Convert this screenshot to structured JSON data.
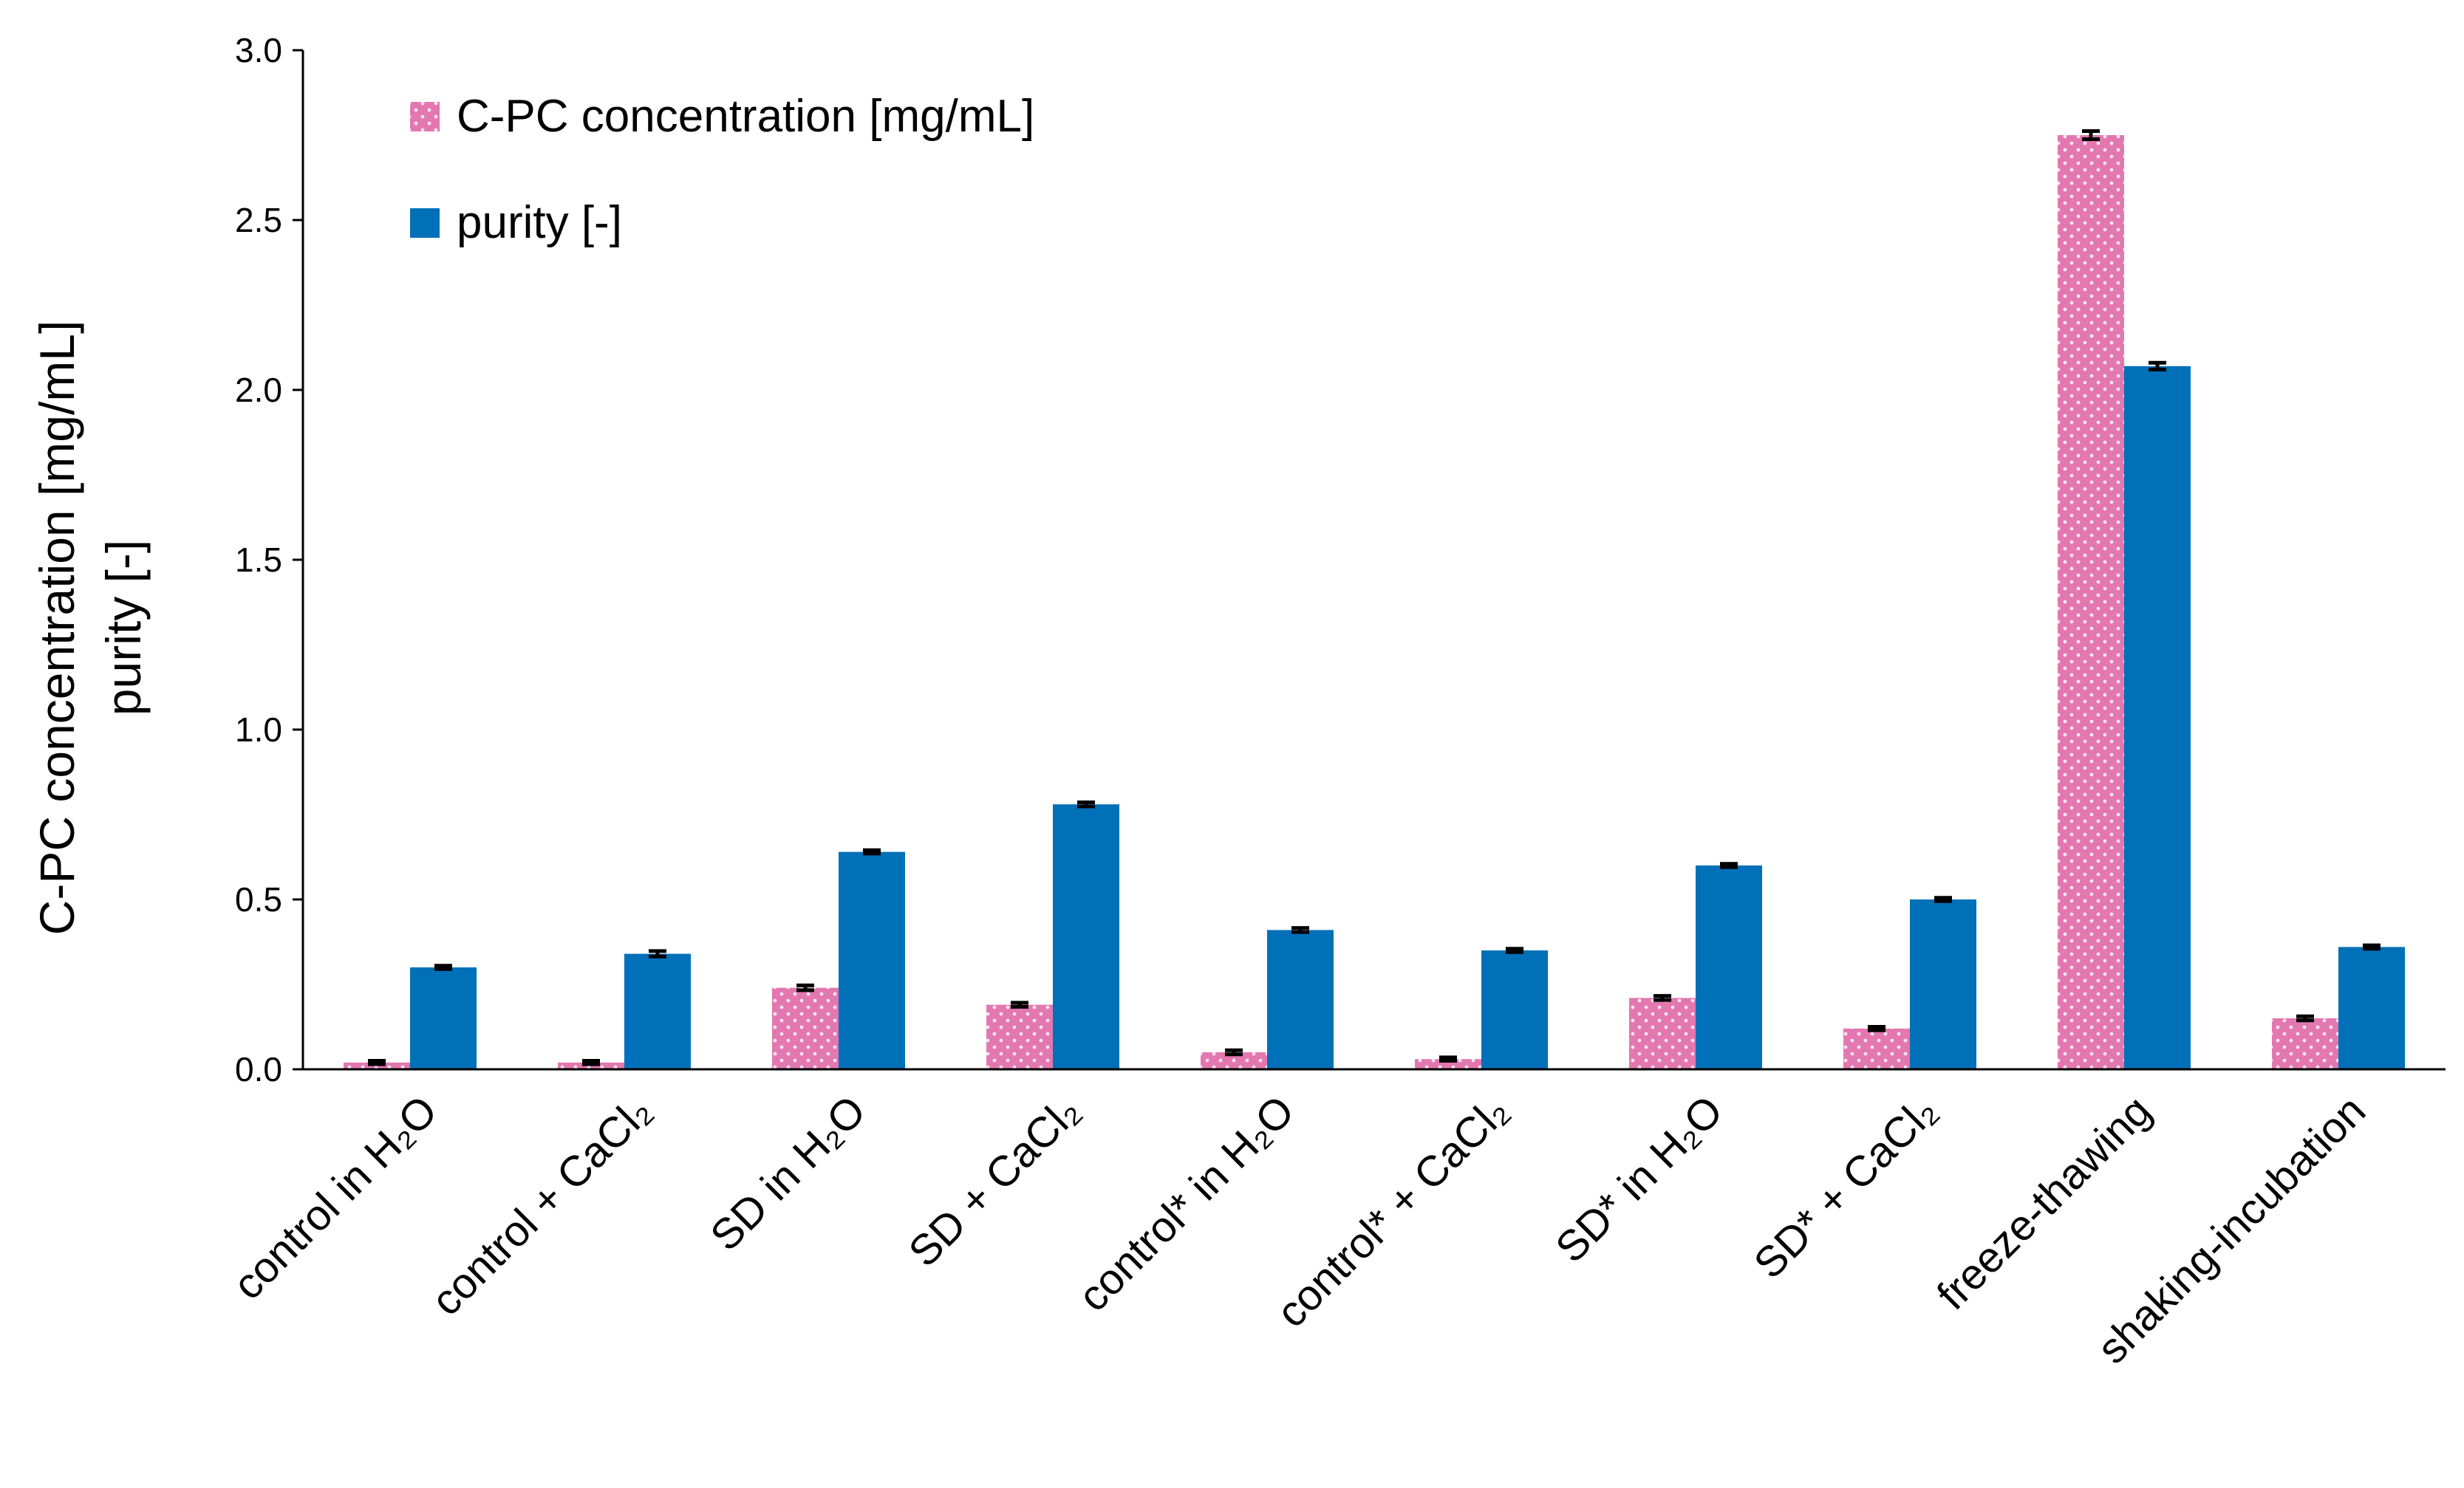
{
  "chart_data": {
    "type": "bar",
    "ylabel_lines": [
      "C-PC concentration [mg/mL]",
      "purity [-]"
    ],
    "ylim": [
      0,
      3.0
    ],
    "yticks": [
      "0.0",
      "0.5",
      "1.0",
      "1.5",
      "2.0",
      "2.5",
      "3.0"
    ],
    "ytick_values": [
      0,
      0.5,
      1.0,
      1.5,
      2.0,
      2.5,
      3.0
    ],
    "grid": false,
    "legend_position": "top-left",
    "categories": [
      "control in H₂O",
      "control + CaCl₂",
      "SD in H₂O",
      "SD + CaCl₂",
      "control* in H₂O",
      "control* + CaCl₂",
      "SD* in H₂O",
      "SD* + CaCl₂",
      "freeze-thawing",
      "shaking-incubation"
    ],
    "series": [
      {
        "name": "C-PC concentration [mg/mL]",
        "color": "#e377b0",
        "pattern": "dotted",
        "values": [
          0.02,
          0.02,
          0.24,
          0.19,
          0.05,
          0.03,
          0.21,
          0.12,
          2.75,
          0.15
        ],
        "errors": [
          0.005,
          0.005,
          0.007,
          0.006,
          0.006,
          0.005,
          0.006,
          0.005,
          0.012,
          0.006
        ]
      },
      {
        "name": "purity [-]",
        "color": "#0070b8",
        "pattern": "solid",
        "values": [
          0.3,
          0.34,
          0.64,
          0.78,
          0.41,
          0.35,
          0.6,
          0.5,
          2.07,
          0.36
        ],
        "errors": [
          0.005,
          0.008,
          0.005,
          0.006,
          0.006,
          0.005,
          0.005,
          0.005,
          0.01,
          0.005
        ]
      }
    ]
  }
}
